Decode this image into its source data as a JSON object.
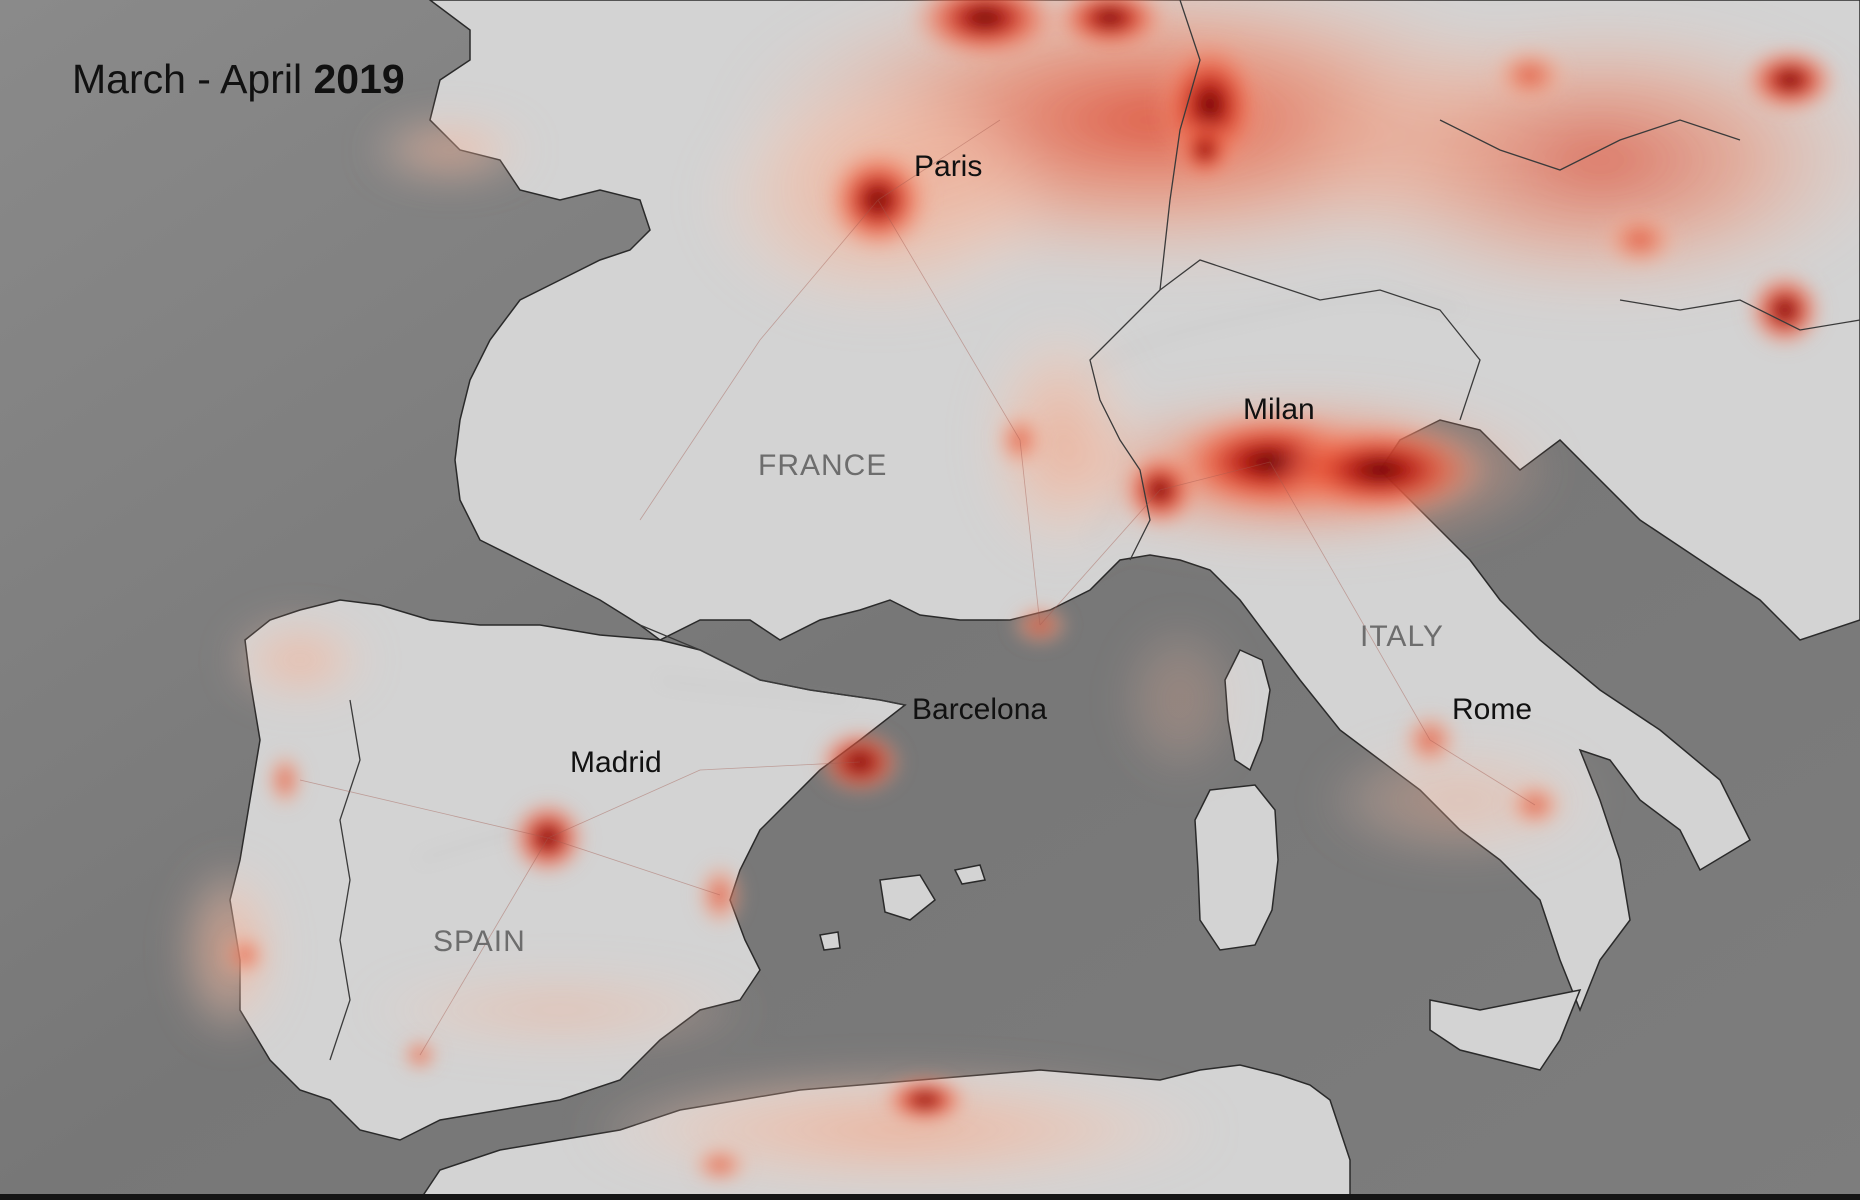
{
  "title": {
    "prefix": "March - April ",
    "year": "2019"
  },
  "cities": {
    "paris": "Paris",
    "milan": "Milan",
    "barcelona": "Barcelona",
    "madrid": "Madrid",
    "rome": "Rome"
  },
  "countries": {
    "france": "FRANCE",
    "italy": "ITALY",
    "spain": "SPAIN"
  },
  "colors": {
    "sea": "#7a7a7a",
    "land": "#d2d2d2",
    "pollution_low": "#f7b49a",
    "pollution_mid": "#e8442a",
    "pollution_high": "#5a0008"
  }
}
